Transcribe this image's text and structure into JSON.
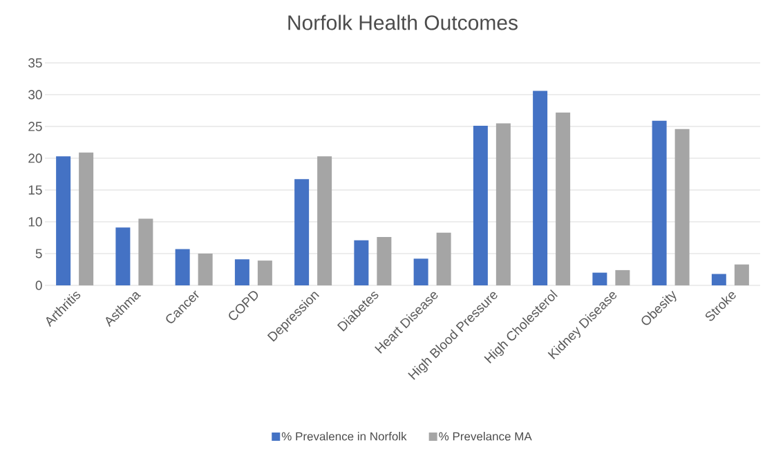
{
  "chart_data": {
    "type": "bar",
    "title": "Norfolk Health Outcomes",
    "categories": [
      "Arthritis",
      "Asthma",
      "Cancer",
      "COPD",
      "Depression",
      "Diabetes",
      "Heart Disease",
      "High Blood Pressure",
      "High Cholesterol",
      "Kidney Disease",
      "Obesity",
      "Stroke"
    ],
    "series": [
      {
        "name": "% Prevalence in Norfolk",
        "color": "#4472c4",
        "values": [
          20.3,
          9.1,
          5.7,
          4.1,
          16.7,
          7.1,
          4.2,
          25.1,
          30.6,
          2.0,
          25.9,
          1.8
        ]
      },
      {
        "name": "% Prevelance MA",
        "color": "#a5a5a5",
        "values": [
          20.9,
          10.5,
          5.0,
          3.9,
          20.3,
          7.6,
          8.3,
          25.5,
          27.2,
          2.4,
          24.6,
          3.3
        ]
      }
    ],
    "ylim": [
      0,
      35
    ],
    "yticks": [
      0,
      5,
      10,
      15,
      20,
      25,
      30,
      35
    ],
    "grid": "y",
    "legend": "bottom"
  }
}
